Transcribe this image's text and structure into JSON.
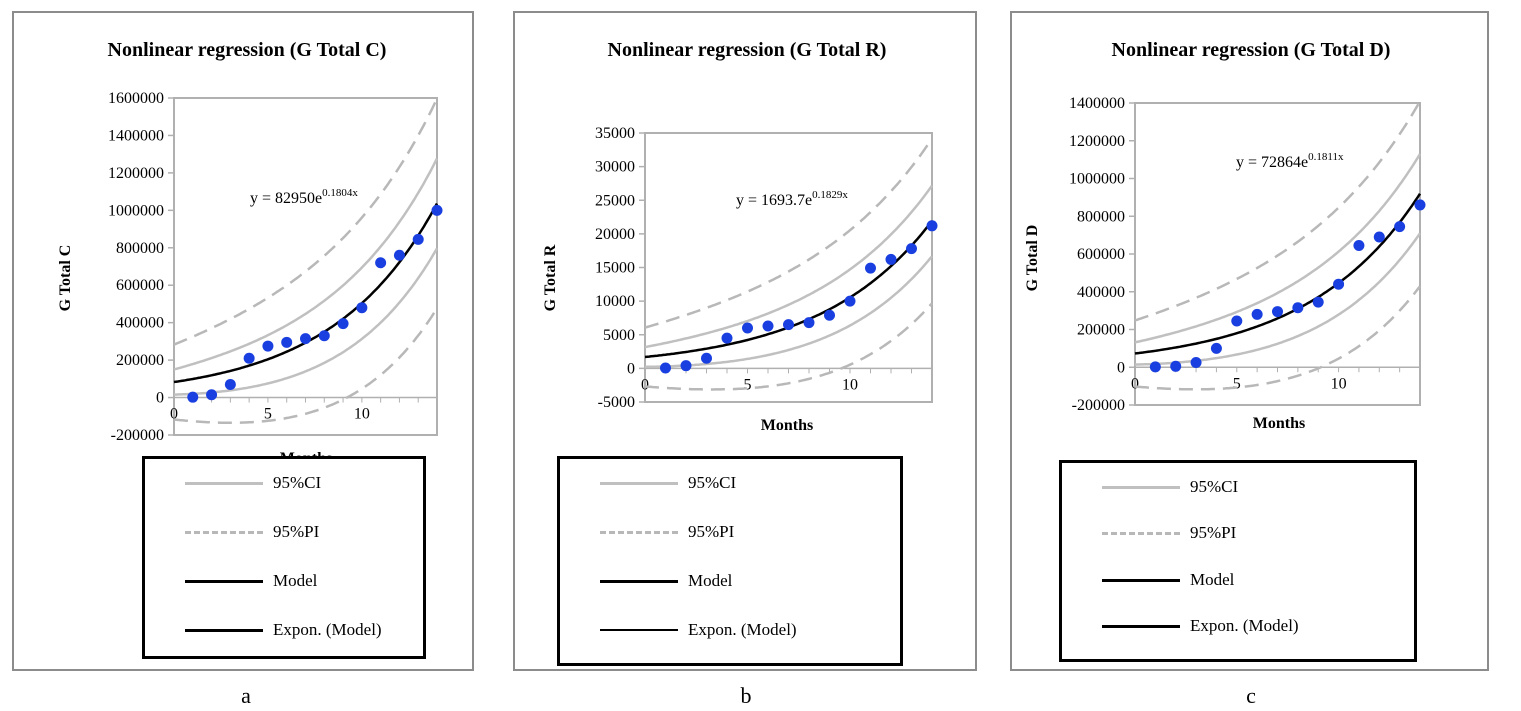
{
  "chart_data": [
    {
      "id": "a",
      "type": "scatter",
      "title": "Nonlinear regression (G Total C)",
      "xlabel": "Months",
      "ylabel": "G Total C",
      "equation": {
        "base": "y = 82950e",
        "exponent": "0.1804x"
      },
      "model": {
        "a": 82950,
        "b": 0.1804
      },
      "xlim": [
        0,
        14
      ],
      "ylim": [
        -200000,
        1600000
      ],
      "xticks": [
        0,
        5,
        10
      ],
      "yticks": [
        -200000,
        0,
        200000,
        400000,
        600000,
        800000,
        1000000,
        1200000,
        1400000,
        1600000
      ],
      "band_factors": {
        "ci": 0.12,
        "pi": 0.25
      },
      "x": [
        1,
        2,
        3,
        4,
        5,
        6,
        7,
        8,
        9,
        10,
        11,
        12,
        13,
        14
      ],
      "y": [
        2000,
        15000,
        70000,
        210000,
        275000,
        295000,
        315000,
        330000,
        395000,
        480000,
        720000,
        760000,
        845000,
        1000000
      ],
      "legend": [
        "95%CI",
        "95%PI",
        "Model",
        "Expon. (Model)"
      ],
      "caption": "a"
    },
    {
      "id": "b",
      "type": "scatter",
      "title": "Nonlinear regression (G Total R)",
      "xlabel": "Months",
      "ylabel": "G Total R",
      "equation": {
        "base": "y = 1693.7e",
        "exponent": "0.1829x"
      },
      "model": {
        "a": 1693.7,
        "b": 0.1829
      },
      "xlim": [
        0,
        14
      ],
      "ylim": [
        -5000,
        35000
      ],
      "xticks": [
        0,
        5,
        10
      ],
      "yticks": [
        -5000,
        0,
        5000,
        10000,
        15000,
        20000,
        25000,
        30000,
        35000
      ],
      "band_factors": {
        "ci": 0.12,
        "pi": 0.25
      },
      "x": [
        1,
        2,
        3,
        4,
        5,
        6,
        7,
        8,
        9,
        10,
        11,
        12,
        13,
        14
      ],
      "y": [
        50,
        400,
        1500,
        4500,
        6000,
        6300,
        6500,
        6800,
        7900,
        10000,
        14900,
        16200,
        17800,
        21200
      ],
      "legend": [
        "95%CI",
        "95%PI",
        "Model",
        "Expon. (Model)"
      ],
      "caption": "b"
    },
    {
      "id": "c",
      "type": "scatter",
      "title": "Nonlinear regression (G Total D)",
      "xlabel": "Months",
      "ylabel": "G Total D",
      "equation": {
        "base": "y = 72864e",
        "exponent": "0.1811x"
      },
      "model": {
        "a": 72864,
        "b": 0.1811
      },
      "xlim": [
        0,
        14
      ],
      "ylim": [
        -200000,
        1400000
      ],
      "xticks": [
        0,
        5,
        10
      ],
      "yticks": [
        -200000,
        0,
        200000,
        400000,
        600000,
        800000,
        1000000,
        1200000,
        1400000
      ],
      "band_factors": {
        "ci": 0.12,
        "pi": 0.25
      },
      "x": [
        1,
        2,
        3,
        4,
        5,
        6,
        7,
        8,
        9,
        10,
        11,
        12,
        13,
        14
      ],
      "y": [
        2000,
        5000,
        25000,
        100000,
        245000,
        280000,
        295000,
        315000,
        345000,
        440000,
        645000,
        690000,
        745000,
        860000
      ],
      "legend": [
        "95%CI",
        "95%PI",
        "Model",
        "Expon. (Model)"
      ],
      "caption": "c"
    }
  ],
  "colors": {
    "points": "#1a3fe0",
    "model": "#000000",
    "ci": "#c0c0c0",
    "pi": "#b8b8b8",
    "axis": "#b0b0b0"
  }
}
